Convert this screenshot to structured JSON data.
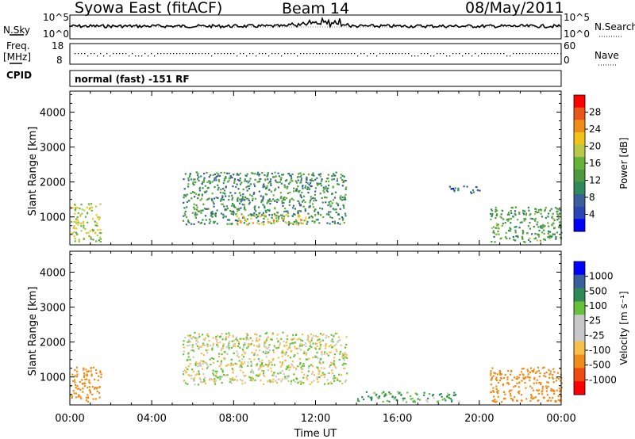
{
  "header": {
    "station": "Syowa East (fitACF)",
    "beam": "Beam 14",
    "date": "08/May/2011"
  },
  "strips": {
    "nsky_label": "N.Sky",
    "nsearch_label": "N.Search",
    "noise_tick_top": "10^5",
    "noise_tick_bottom": "10^0",
    "freq_label_1": "Freq.",
    "freq_label_2": "[MHz]",
    "freq_ticks": [
      "18",
      "8"
    ],
    "nave_label": "Nave",
    "nave_ticks": [
      "60",
      "0"
    ],
    "cpid_label": "CPID",
    "cpid_value": "normal (fast) -151 RF"
  },
  "chart_data": [
    {
      "type": "heatmap",
      "panel": "power",
      "ylabel": "Slant Range [km]",
      "xlabel": "Time UT",
      "ylim": [
        200,
        4600
      ],
      "x_ticks": [
        "00:00",
        "04:00",
        "08:00",
        "12:00",
        "16:00",
        "20:00",
        "00:00"
      ],
      "y_ticks": [
        1000,
        2000,
        3000,
        4000
      ],
      "colorbar": {
        "label": "Power [dB]",
        "ticks": [
          "28",
          "24",
          "20",
          "16",
          "12",
          "8",
          "4"
        ],
        "colors": [
          "#0000ff",
          "#2a47b5",
          "#3a5f9a",
          "#2e8b57",
          "#4d9a3e",
          "#66b23a",
          "#b8c94a",
          "#f3c21a",
          "#f08c1a",
          "#e8561a",
          "#ff0000"
        ]
      },
      "features": [
        {
          "t_start": "00:00",
          "t_end": "01:30",
          "range_km": [
            300,
            1400
          ],
          "level_db": 18
        },
        {
          "t_start": "05:30",
          "t_end": "13:30",
          "range_km": [
            800,
            2300
          ],
          "level_db": 10
        },
        {
          "t_start": "08:00",
          "t_end": "11:30",
          "range_km": [
            800,
            1100
          ],
          "level_db": 20
        },
        {
          "t_start": "18:30",
          "t_end": "20:00",
          "range_km": [
            1700,
            1900
          ],
          "level_db": 6
        },
        {
          "t_start": "20:30",
          "t_end": "24:00",
          "range_km": [
            300,
            1300
          ],
          "level_db": 12
        }
      ]
    },
    {
      "type": "heatmap",
      "panel": "velocity",
      "ylabel": "Slant Range [km]",
      "xlabel": "Time UT",
      "ylim": [
        200,
        4600
      ],
      "x_ticks": [
        "00:00",
        "04:00",
        "08:00",
        "12:00",
        "16:00",
        "20:00",
        "00:00"
      ],
      "y_ticks": [
        1000,
        2000,
        3000,
        4000
      ],
      "colorbar": {
        "label": "Velocity [m s⁻¹]",
        "ticks": [
          "1000",
          "500",
          "100",
          "25",
          "-25",
          "-100",
          "-500",
          "-1000"
        ],
        "colors": [
          "#ff0000",
          "#f04a10",
          "#f08c1a",
          "#f7c04a",
          "#c8c8c8",
          "#c8c8c8",
          "#66c23a",
          "#2e8b57",
          "#3a5f9a",
          "#0000ff"
        ]
      },
      "features": [
        {
          "t_start": "00:00",
          "t_end": "01:30",
          "range_km": [
            300,
            1300
          ],
          "velocity_ms": -300
        },
        {
          "t_start": "05:30",
          "t_end": "13:30",
          "range_km": [
            800,
            2300
          ],
          "velocity_ms": 0
        },
        {
          "t_start": "14:00",
          "t_end": "19:00",
          "range_km": [
            300,
            600
          ],
          "velocity_ms": 100
        },
        {
          "t_start": "20:30",
          "t_end": "24:00",
          "range_km": [
            300,
            1300
          ],
          "velocity_ms": -200
        }
      ]
    }
  ]
}
